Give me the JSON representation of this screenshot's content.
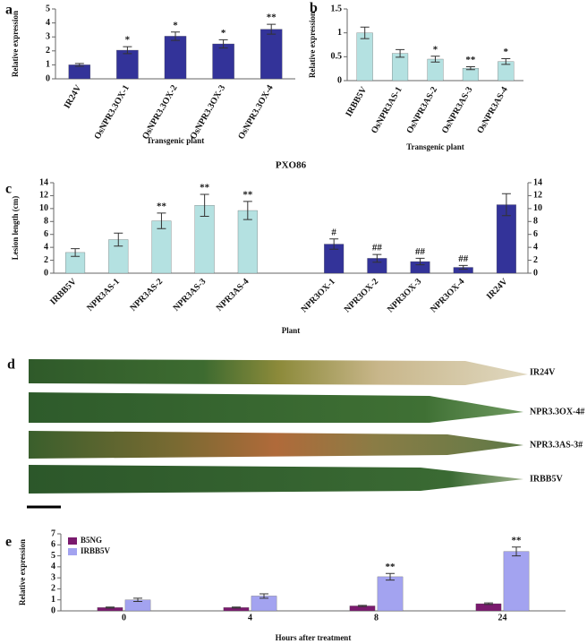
{
  "chart_data": [
    {
      "type": "bar",
      "panel": "a",
      "ylabel": "Relative expression",
      "xlabel": "Transgenic plant",
      "categories": [
        "IR24V",
        "OsNPR3.3OX-1",
        "OsNPR3.3OX-2",
        "OsNPR3.3OX-3",
        "OsNPR3.3OX-4"
      ],
      "values": [
        1.0,
        2.05,
        3.05,
        2.5,
        3.55
      ],
      "errors": [
        0.1,
        0.25,
        0.3,
        0.3,
        0.35
      ],
      "annotations": [
        null,
        "*",
        "*",
        "*",
        "**"
      ],
      "color": "#333399",
      "ylim": [
        0,
        5
      ],
      "yticks": [
        0,
        1,
        2,
        3,
        4,
        5
      ]
    },
    {
      "type": "bar",
      "panel": "b",
      "ylabel": "Relative expression",
      "xlabel": "Transgenic plant",
      "categories": [
        "IRBB5V",
        "OsNPR3AS-1",
        "OsNPR3AS-2",
        "OsNPR3AS-3",
        "OsNPR3AS-4"
      ],
      "values": [
        1.0,
        0.57,
        0.45,
        0.26,
        0.4
      ],
      "errors": [
        0.12,
        0.08,
        0.06,
        0.03,
        0.06
      ],
      "annotations": [
        null,
        null,
        "*",
        "**",
        "*"
      ],
      "color": "#b4e1e1",
      "ylim": [
        0,
        1.5
      ],
      "yticks": [
        0,
        0.5,
        1,
        1.5
      ]
    },
    {
      "type": "bar",
      "panel": "c",
      "title": "PXO86",
      "ylabel": "Lesion length (cm)",
      "xlabel": "Plant",
      "categories": [
        "IRBB5V",
        "NPR3AS-1",
        "NPR3AS-2",
        "NPR3AS-3",
        "NPR3AS-4",
        null,
        "NPR3OX-1",
        "NPR3OX-2",
        "NPR3OX-3",
        "NPR3OX-4",
        "IR24V"
      ],
      "values": [
        3.2,
        5.2,
        8.1,
        10.5,
        9.7,
        null,
        4.5,
        2.3,
        1.8,
        0.9,
        10.6
      ],
      "errors": [
        0.6,
        1.0,
        1.2,
        1.7,
        1.4,
        null,
        0.8,
        0.6,
        0.5,
        0.3,
        1.7
      ],
      "annotations": [
        null,
        null,
        "**",
        "**",
        "**",
        null,
        "#",
        "##",
        "##",
        "##",
        null
      ],
      "colors": [
        "#b4e1e1",
        "#b4e1e1",
        "#b4e1e1",
        "#b4e1e1",
        "#b4e1e1",
        null,
        "#333399",
        "#333399",
        "#333399",
        "#333399",
        "#333399"
      ],
      "ylim": [
        0,
        14
      ],
      "yticks": [
        0,
        2,
        4,
        6,
        8,
        10,
        12,
        14
      ],
      "y2lim": [
        0,
        14
      ],
      "y2ticks": [
        0,
        2,
        4,
        6,
        8,
        10,
        12,
        14
      ]
    },
    {
      "type": "grouped-bar",
      "panel": "e",
      "ylabel": "Relative expression",
      "xlabel": "Hours after treatment",
      "categories": [
        "0",
        "4",
        "8",
        "24"
      ],
      "series": [
        {
          "name": "B5NG",
          "color": "#7a1a6e",
          "values": [
            0.3,
            0.3,
            0.45,
            0.65
          ],
          "errors": [
            0.05,
            0.05,
            0.05,
            0.07
          ],
          "annotations": [
            null,
            null,
            null,
            null
          ]
        },
        {
          "name": "IRBB5V",
          "color": "#a3a3f0",
          "values": [
            1.0,
            1.35,
            3.1,
            5.4
          ],
          "errors": [
            0.15,
            0.2,
            0.3,
            0.4
          ],
          "annotations": [
            null,
            null,
            "**",
            "**"
          ]
        }
      ],
      "ylim": [
        0,
        7
      ],
      "yticks": [
        0,
        1,
        2,
        3,
        4,
        5,
        6,
        7
      ],
      "legend": "top-left"
    }
  ],
  "leaf_panel": {
    "panel": "d",
    "labels": [
      "IR24V",
      "NPR3.3OX-4#",
      "NPR3.3AS-3#",
      "IRBB5V"
    ]
  }
}
